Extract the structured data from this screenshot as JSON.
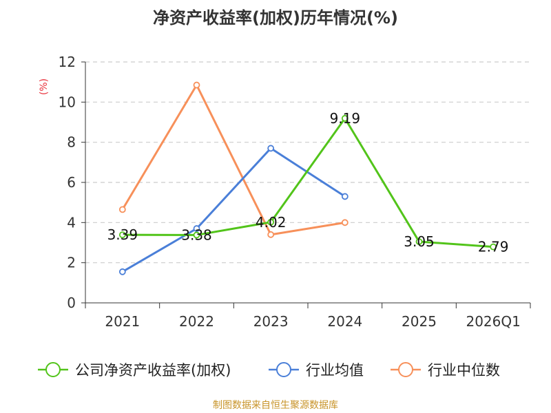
{
  "chart_data": {
    "type": "line",
    "title": "净资产收益率(加权)历年情况(%)",
    "ylabel": "(%)",
    "xlabel": "",
    "categories": [
      "2021",
      "2022",
      "2023",
      "2024",
      "2025",
      "2026Q1"
    ],
    "ylim": [
      0,
      12
    ],
    "yticks": [
      0,
      2,
      4,
      6,
      8,
      10,
      12
    ],
    "grid": true,
    "legend": "bottom",
    "series": [
      {
        "name": "公司净资产收益率(加权)",
        "color": "#52c41a",
        "values": [
          3.39,
          3.38,
          4.02,
          9.19,
          3.05,
          2.79
        ],
        "labels": [
          "3.39",
          "3.38",
          "4.02",
          "9.19",
          "3.05",
          "2.79"
        ]
      },
      {
        "name": "行业均值",
        "color": "#4a7fd8",
        "values": [
          1.55,
          3.7,
          7.7,
          5.3,
          null,
          null
        ]
      },
      {
        "name": "行业中位数",
        "color": "#f7905a",
        "values": [
          4.65,
          10.85,
          3.4,
          4.0,
          null,
          null
        ]
      }
    ]
  },
  "source_note": "制图数据来自恒生聚源数据库",
  "colors": {
    "ylabel": "#e8303a",
    "axis": "#333333",
    "grid": "#cccccc",
    "source": "#c8942a"
  }
}
